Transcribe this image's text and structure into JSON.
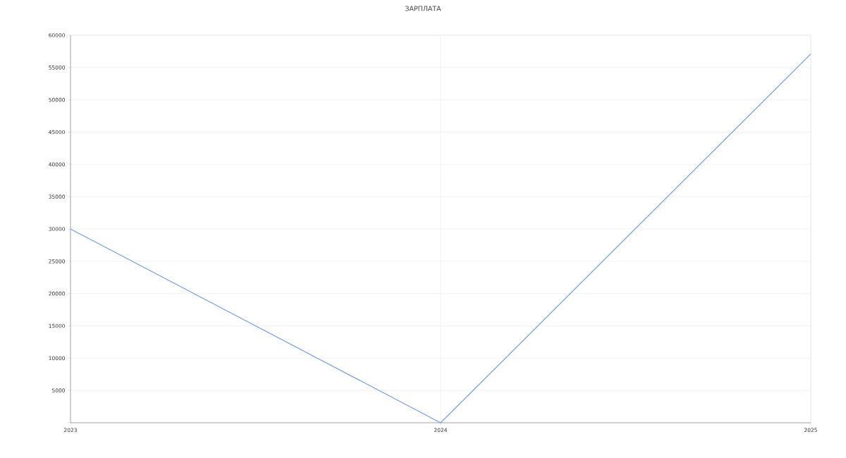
{
  "chart_data": {
    "type": "line",
    "title": "ЗАРПЛАТА",
    "x": [
      "2023",
      "2024",
      "2025"
    ],
    "series": [
      {
        "color": "#6f9cf0",
        "values": [
          30000,
          0,
          57100
        ]
      }
    ],
    "xlim": [
      "2023",
      "2025"
    ],
    "xticks": [
      "2023",
      "2024",
      "2025"
    ],
    "ylim": [
      0,
      60000
    ],
    "yticks": [
      {
        "value": 0,
        "label": null
      },
      5000,
      10000,
      15000,
      20000,
      25000,
      30000,
      35000,
      40000,
      45000,
      50000,
      55000,
      60000
    ],
    "grid": true,
    "marker": "none",
    "line_style": "solid"
  }
}
